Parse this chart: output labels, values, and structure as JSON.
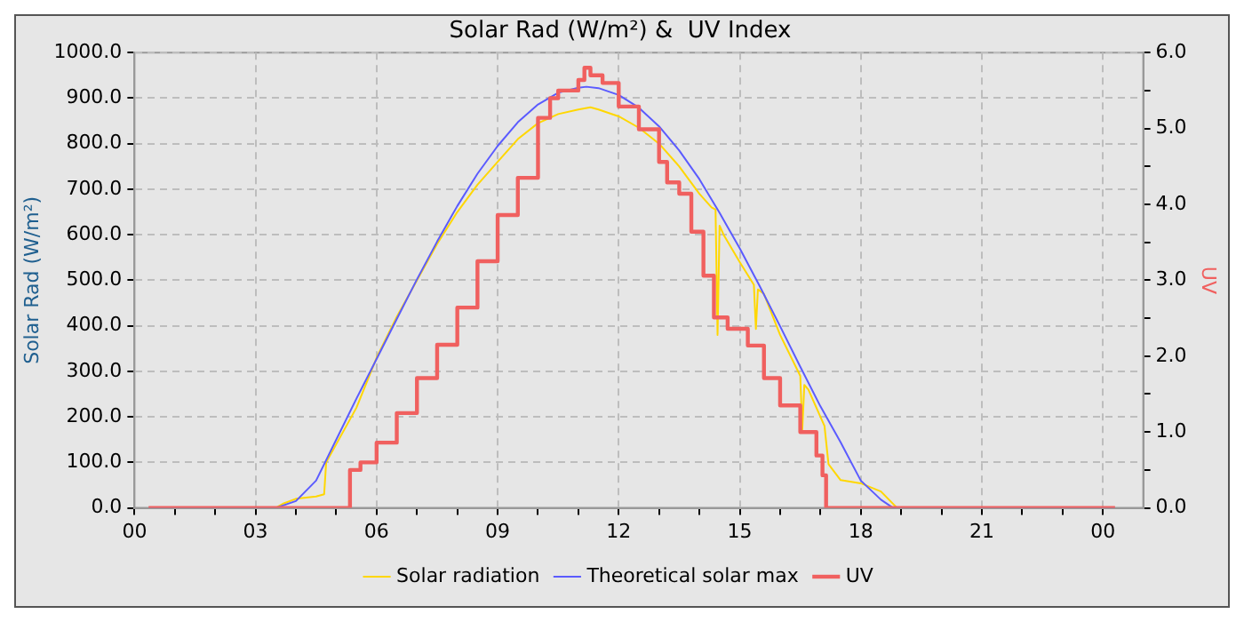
{
  "chart_data": {
    "type": "line",
    "title": "Solar Rad (W/m²) &  UV Index",
    "ylabel": "Solar Rad (W/m²)",
    "y2label": "UV",
    "xlim": [
      0,
      25
    ],
    "xticks": [
      {
        "value": 0,
        "label": "00"
      },
      {
        "value": 1,
        "label": null
      },
      {
        "value": 2,
        "label": null
      },
      {
        "value": 3,
        "label": "03"
      },
      {
        "value": 4,
        "label": null
      },
      {
        "value": 5,
        "label": null
      },
      {
        "value": 6,
        "label": "06"
      },
      {
        "value": 7,
        "label": null
      },
      {
        "value": 8,
        "label": null
      },
      {
        "value": 9,
        "label": "09"
      },
      {
        "value": 10,
        "label": null
      },
      {
        "value": 11,
        "label": null
      },
      {
        "value": 12,
        "label": "12"
      },
      {
        "value": 13,
        "label": null
      },
      {
        "value": 14,
        "label": null
      },
      {
        "value": 15,
        "label": "15"
      },
      {
        "value": 16,
        "label": null
      },
      {
        "value": 17,
        "label": null
      },
      {
        "value": 18,
        "label": "18"
      },
      {
        "value": 19,
        "label": null
      },
      {
        "value": 20,
        "label": null
      },
      {
        "value": 21,
        "label": "21"
      },
      {
        "value": 22,
        "label": null
      },
      {
        "value": 23,
        "label": null
      },
      {
        "value": 24,
        "label": "00"
      }
    ],
    "ylim": [
      0,
      1000
    ],
    "yticks": [
      {
        "value": 0,
        "label": "0.0"
      },
      {
        "value": 100,
        "label": "100.0"
      },
      {
        "value": 200,
        "label": "200.0"
      },
      {
        "value": 300,
        "label": "300.0"
      },
      {
        "value": 400,
        "label": "400.0"
      },
      {
        "value": 500,
        "label": "500.0"
      },
      {
        "value": 600,
        "label": "600.0"
      },
      {
        "value": 700,
        "label": "700.0"
      },
      {
        "value": 800,
        "label": "800.0"
      },
      {
        "value": 900,
        "label": "900.0"
      },
      {
        "value": 1000,
        "label": "1000.0"
      }
    ],
    "y2lim": [
      0,
      6
    ],
    "y2ticks": [
      {
        "value": 0,
        "label": "0.0"
      },
      {
        "value": 0.5,
        "label": null
      },
      {
        "value": 1,
        "label": "1.0"
      },
      {
        "value": 1.5,
        "label": null
      },
      {
        "value": 2,
        "label": "2.0"
      },
      {
        "value": 2.5,
        "label": null
      },
      {
        "value": 3,
        "label": "3.0"
      },
      {
        "value": 3.5,
        "label": null
      },
      {
        "value": 4,
        "label": "4.0"
      },
      {
        "value": 4.5,
        "label": null
      },
      {
        "value": 5,
        "label": "5.0"
      },
      {
        "value": 5.5,
        "label": null
      },
      {
        "value": 6,
        "label": "6.0"
      }
    ],
    "grid": true,
    "legend": "bottom",
    "marker": "none",
    "series": [
      {
        "name": "Solar radiation",
        "color": "#ffd700",
        "x": [
          0.35,
          3.5,
          3.7,
          4.0,
          4.5,
          4.7,
          4.75,
          5.0,
          5.5,
          6.0,
          6.5,
          7.0,
          7.5,
          8.0,
          8.5,
          9.0,
          9.5,
          10.0,
          10.5,
          11.0,
          11.3,
          11.5,
          12.0,
          12.5,
          13.0,
          13.5,
          14.0,
          14.3,
          14.4,
          14.45,
          14.5,
          14.6,
          15.0,
          15.35,
          15.4,
          15.45,
          15.6,
          16.0,
          16.5,
          16.55,
          16.6,
          16.7,
          17.0,
          17.1,
          17.2,
          17.5,
          18.0,
          18.5,
          18.9,
          24.3
        ],
        "values": [
          0,
          0,
          10,
          20,
          25,
          30,
          100,
          140,
          220,
          330,
          420,
          500,
          580,
          650,
          710,
          760,
          810,
          845,
          865,
          875,
          880,
          875,
          860,
          835,
          800,
          750,
          690,
          660,
          655,
          380,
          620,
          600,
          540,
          490,
          393,
          480,
          470,
          380,
          290,
          171,
          270,
          260,
          200,
          180,
          96,
          61,
          54,
          36,
          0,
          0
        ]
      },
      {
        "name": "Theoretical solar max",
        "color": "#5b5bff",
        "x": [
          0.35,
          3.5,
          4,
          4.5,
          5,
          5.5,
          6,
          6.5,
          7,
          7.5,
          8,
          8.5,
          9,
          9.5,
          10,
          10.5,
          11,
          11.2,
          11.5,
          12,
          12.5,
          13,
          13.5,
          14,
          14.5,
          15,
          15.5,
          16,
          16.5,
          17,
          17.5,
          18,
          18.5,
          18.8,
          24.3
        ],
        "values": [
          0,
          0,
          15,
          60,
          150,
          240,
          327,
          415,
          502,
          585,
          663,
          734,
          795,
          847,
          886,
          912,
          923,
          925,
          922,
          907,
          879,
          838,
          785,
          722,
          648,
          570,
          486,
          399,
          310,
          223,
          144,
          60,
          18,
          0,
          0
        ]
      },
      {
        "name": "UV",
        "color": "#f0605f",
        "type": "step",
        "axis": "y2",
        "x": [
          0.35,
          5.34,
          5.6,
          6.0,
          6.5,
          7.0,
          7.5,
          8.0,
          8.5,
          9.0,
          9.5,
          10.0,
          10.3,
          10.5,
          11.0,
          11.15,
          11.3,
          11.6,
          12.0,
          12.5,
          13.0,
          13.2,
          13.5,
          13.8,
          14.1,
          14.36,
          14.7,
          15.2,
          15.6,
          16.0,
          16.5,
          16.9,
          17.05,
          17.14,
          24.3
        ],
        "values": [
          0,
          0.5,
          0.6,
          0.86,
          1.25,
          1.71,
          2.15,
          2.64,
          3.25,
          3.86,
          4.35,
          5.14,
          5.4,
          5.5,
          5.64,
          5.8,
          5.7,
          5.6,
          5.29,
          4.99,
          4.56,
          4.29,
          4.14,
          3.64,
          3.06,
          2.51,
          2.36,
          2.14,
          1.71,
          1.35,
          1.0,
          0.69,
          0.43,
          0,
          0
        ]
      }
    ]
  }
}
